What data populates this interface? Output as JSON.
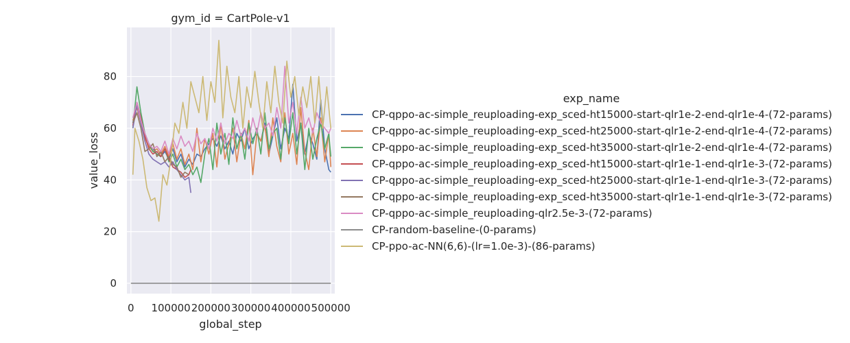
{
  "chart_data": {
    "type": "line",
    "title": "gym_id = CartPole-v1",
    "xlabel": "global_step",
    "ylabel": "value_loss",
    "xlim": [
      -10000,
      510000
    ],
    "ylim": [
      -4,
      99
    ],
    "xticks": [
      0,
      100000,
      200000,
      300000,
      400000,
      500000
    ],
    "xtick_labels": [
      "0",
      "100000",
      "200000",
      "300000",
      "400000",
      "500000"
    ],
    "yticks": [
      0,
      20,
      40,
      60,
      80
    ],
    "ytick_labels": [
      "0",
      "20",
      "40",
      "60",
      "80"
    ],
    "grid": true,
    "background": "#eaeaf2",
    "legend_title": "exp_name",
    "legend_position": "outside right",
    "series": [
      {
        "name": "CP-qppo-ac-simple_reuploading-exp_sced-ht15000-start-qlr1e-2-end-qlr1e-4-(72-params)",
        "color": "#4c72b0",
        "x": [
          5000,
          15000,
          25000,
          35000,
          45000,
          55000,
          65000,
          75000,
          85000,
          95000,
          105000,
          115000,
          125000,
          135000,
          145000,
          155000,
          165000,
          175000,
          185000,
          195000,
          205000,
          215000,
          225000,
          235000,
          245000,
          255000,
          265000,
          275000,
          285000,
          295000,
          305000,
          315000,
          325000,
          335000,
          345000,
          355000,
          365000,
          375000,
          385000,
          395000,
          405000,
          415000,
          425000,
          435000,
          445000,
          455000,
          465000,
          475000,
          485000,
          495000,
          500000
        ],
        "y": [
          62,
          70,
          64,
          58,
          54,
          52,
          50,
          49,
          51,
          48,
          52,
          47,
          50,
          45,
          48,
          46,
          50,
          49,
          52,
          54,
          56,
          53,
          57,
          52,
          55,
          50,
          58,
          55,
          60,
          52,
          56,
          58,
          55,
          62,
          50,
          57,
          64,
          52,
          60,
          56,
          77,
          55,
          62,
          50,
          58,
          54,
          48,
          71,
          52,
          44,
          43
        ]
      },
      {
        "name": "CP-qppo-ac-simple_reuploading-exp_sced-ht25000-start-qlr1e-2-end-qlr1e-4-(72-params)",
        "color": "#dd8452",
        "x": [
          5000,
          15000,
          25000,
          35000,
          45000,
          55000,
          65000,
          75000,
          85000,
          95000,
          105000,
          115000,
          125000,
          135000,
          145000,
          155000,
          165000,
          175000,
          185000,
          195000,
          205000,
          215000,
          225000,
          235000,
          245000,
          255000,
          265000,
          275000,
          285000,
          295000,
          305000,
          315000,
          325000,
          335000,
          345000,
          355000,
          365000,
          375000,
          385000,
          395000,
          405000,
          415000,
          425000,
          435000,
          445000,
          455000,
          465000,
          475000,
          485000,
          495000,
          500000
        ],
        "y": [
          63,
          68,
          62,
          56,
          53,
          51,
          52,
          50,
          53,
          49,
          54,
          48,
          52,
          46,
          50,
          44,
          60,
          47,
          56,
          50,
          58,
          45,
          62,
          48,
          54,
          60,
          47,
          58,
          52,
          63,
          42,
          58,
          55,
          61,
          49,
          64,
          53,
          47,
          66,
          50,
          58,
          46,
          68,
          51,
          44,
          60,
          49,
          64,
          47,
          58,
          45
        ]
      },
      {
        "name": "CP-qppo-ac-simple_reuploading-exp_sced-ht35000-start-qlr1e-2-end-qlr1e-4-(72-params)",
        "color": "#55a868",
        "x": [
          5000,
          15000,
          25000,
          35000,
          45000,
          55000,
          65000,
          75000,
          85000,
          95000,
          105000,
          115000,
          125000,
          135000,
          145000,
          155000,
          165000,
          175000,
          185000,
          195000,
          205000,
          215000,
          225000,
          235000,
          245000,
          255000,
          265000,
          275000,
          285000,
          295000,
          305000,
          315000,
          325000,
          335000,
          345000,
          355000,
          365000,
          375000,
          385000,
          395000,
          405000,
          415000,
          425000,
          435000,
          445000,
          455000,
          465000,
          475000,
          485000,
          495000,
          500000
        ],
        "y": [
          60,
          76,
          66,
          58,
          54,
          51,
          50,
          49,
          52,
          47,
          50,
          45,
          48,
          44,
          46,
          42,
          45,
          39,
          50,
          56,
          44,
          62,
          50,
          58,
          46,
          64,
          52,
          58,
          48,
          62,
          54,
          60,
          50,
          66,
          52,
          58,
          60,
          48,
          64,
          54,
          66,
          50,
          62,
          44,
          60,
          48,
          56,
          62,
          52,
          58,
          49
        ]
      },
      {
        "name": "CP-qppo-ac-simple_reuploading-exp_sced-ht15000-start-qlr1e-1-end-qlr1e-3-(72-params)",
        "color": "#c44e52",
        "x": [
          5000,
          15000,
          25000,
          35000,
          45000,
          55000,
          65000,
          75000,
          85000,
          95000,
          105000,
          115000,
          125000,
          135000,
          145000,
          150000
        ],
        "y": [
          61,
          70,
          64,
          57,
          52,
          50,
          51,
          49,
          52,
          48,
          45,
          44,
          43,
          41,
          42,
          44
        ]
      },
      {
        "name": "CP-qppo-ac-simple_reuploading-exp_sced-ht25000-start-qlr1e-1-end-qlr1e-3-(72-params)",
        "color": "#8172b3",
        "x": [
          5000,
          15000,
          25000,
          35000,
          45000,
          55000,
          65000,
          75000,
          85000,
          95000,
          105000,
          115000,
          125000,
          135000,
          145000,
          150000
        ],
        "y": [
          60,
          69,
          62,
          55,
          50,
          48,
          47,
          46,
          47,
          45,
          47,
          44,
          42,
          40,
          41,
          35
        ]
      },
      {
        "name": "CP-qppo-ac-simple_reuploading-exp_sced-ht35000-start-qlr1e-1-end-qlr1e-3-(72-params)",
        "color": "#937860",
        "x": [
          5000,
          15000,
          25000,
          35000,
          45000,
          55000,
          65000,
          75000,
          85000,
          95000,
          105000,
          115000,
          125000,
          135000,
          145000
        ],
        "y": [
          62,
          66,
          60,
          51,
          52,
          54,
          49,
          51,
          47,
          49,
          46,
          45,
          41,
          43,
          42
        ]
      },
      {
        "name": "CP-qppo-ac-simple_reuploading-qlr2.5e-3-(72-params)",
        "color": "#da8bc3",
        "x": [
          5000,
          15000,
          25000,
          35000,
          45000,
          55000,
          65000,
          75000,
          85000,
          95000,
          105000,
          115000,
          125000,
          135000,
          145000,
          155000,
          165000,
          175000,
          185000,
          195000,
          205000,
          215000,
          225000,
          235000,
          245000,
          255000,
          265000,
          275000,
          285000,
          295000,
          305000,
          315000,
          325000,
          335000,
          345000,
          355000,
          365000,
          375000,
          385000,
          395000,
          405000,
          415000,
          425000,
          435000,
          445000,
          455000,
          465000,
          475000,
          485000,
          495000,
          500000
        ],
        "y": [
          64,
          70,
          63,
          58,
          54,
          52,
          53,
          51,
          55,
          50,
          56,
          52,
          57,
          53,
          55,
          51,
          58,
          54,
          56,
          52,
          60,
          55,
          62,
          54,
          58,
          56,
          63,
          57,
          60,
          55,
          64,
          58,
          66,
          60,
          62,
          57,
          68,
          60,
          84,
          62,
          70,
          58,
          72,
          60,
          64,
          58,
          66,
          62,
          60,
          58,
          60
        ]
      },
      {
        "name": "CP-random-baseline-(0-params)",
        "color": "#8c8c8c",
        "x": [
          0,
          500000
        ],
        "y": [
          0,
          0
        ]
      },
      {
        "name": "CP-ppo-ac-NN(6,6)-(lr=1.0e-3)-(86-params)",
        "color": "#ccb974",
        "x": [
          5000,
          10000,
          20000,
          30000,
          40000,
          50000,
          60000,
          70000,
          80000,
          90000,
          100000,
          110000,
          120000,
          130000,
          140000,
          150000,
          160000,
          170000,
          180000,
          190000,
          200000,
          210000,
          220000,
          230000,
          240000,
          250000,
          260000,
          270000,
          280000,
          290000,
          300000,
          310000,
          320000,
          330000,
          340000,
          350000,
          360000,
          370000,
          380000,
          390000,
          400000,
          410000,
          420000,
          430000,
          440000,
          450000,
          460000,
          470000,
          480000,
          490000,
          500000
        ],
        "y": [
          42,
          60,
          55,
          48,
          37,
          32,
          33,
          24,
          42,
          38,
          48,
          62,
          58,
          70,
          60,
          78,
          72,
          66,
          80,
          63,
          78,
          70,
          94,
          64,
          84,
          72,
          66,
          80,
          60,
          76,
          68,
          82,
          70,
          60,
          78,
          66,
          84,
          70,
          62,
          86,
          72,
          80,
          65,
          76,
          68,
          80,
          62,
          80,
          60,
          76,
          60
        ]
      }
    ]
  }
}
